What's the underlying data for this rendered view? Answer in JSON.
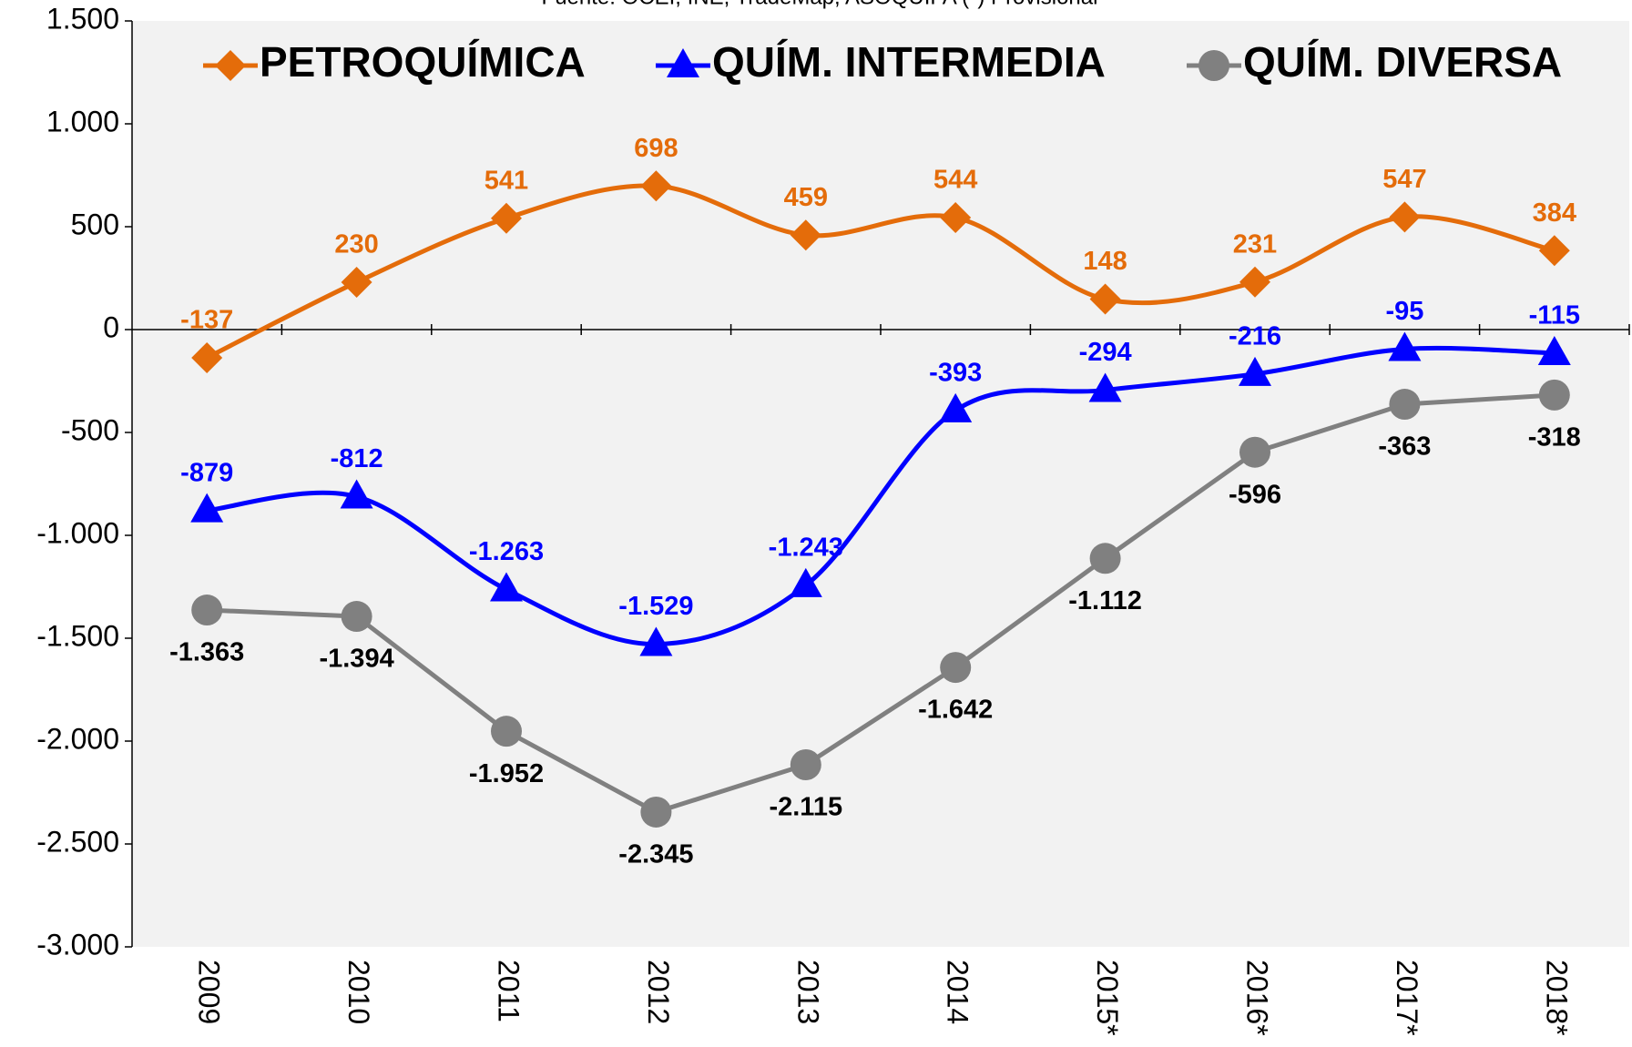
{
  "chart_data": {
    "type": "line",
    "note": "Fuente: OCEI, INE, TradeMap, ASOQUIFA (*) Provisional",
    "categories": [
      "2009",
      "2010",
      "2011",
      "2012",
      "2013",
      "2014",
      "2015*",
      "2016*",
      "2017*",
      "2018*"
    ],
    "series": [
      {
        "name": "PETROQUÍMICA",
        "color": "#e46c0a",
        "marker": "diamond",
        "smooth": true,
        "label_position": "above",
        "values": [
          -137,
          230,
          541,
          698,
          459,
          544,
          148,
          231,
          547,
          384
        ]
      },
      {
        "name": "QUÍM. INTERMEDIA",
        "color": "#0000ff",
        "marker": "triangle",
        "smooth": true,
        "label_position": "above",
        "values": [
          -879,
          -812,
          -1263,
          -1529,
          -1243,
          -393,
          -294,
          -216,
          -95,
          -115
        ],
        "value_labels": [
          "-879",
          "-812",
          "-1.263",
          "-1.529",
          "-1.243",
          "-393",
          "-294",
          "-216",
          "-95",
          "-115"
        ]
      },
      {
        "name": "QUÍM. DIVERSA",
        "color": "#808080",
        "marker": "circle",
        "smooth": false,
        "label_position": "below",
        "label_color": "#000000",
        "values": [
          -1363,
          -1394,
          -1952,
          -2345,
          -2115,
          -1642,
          -1112,
          -596,
          -363,
          -318
        ],
        "value_labels": [
          "-1.363",
          "-1.394",
          "-1.952",
          "-2.345",
          "-2.115",
          "-1.642",
          "-1.112",
          "-596",
          "-363",
          "-318"
        ]
      }
    ],
    "ylim": [
      -3000,
      1500
    ],
    "yticks": [
      {
        "value": -3000,
        "label": "-3.000"
      },
      {
        "value": -2500,
        "label": "-2.500"
      },
      {
        "value": -2000,
        "label": "-2.000"
      },
      {
        "value": -1500,
        "label": "-1.500"
      },
      {
        "value": -1000,
        "label": "-1.000"
      },
      -500,
      0,
      500,
      {
        "value": 1000,
        "label": "1.000"
      },
      {
        "value": 1500,
        "label": "1.500"
      }
    ],
    "legend": "top"
  }
}
